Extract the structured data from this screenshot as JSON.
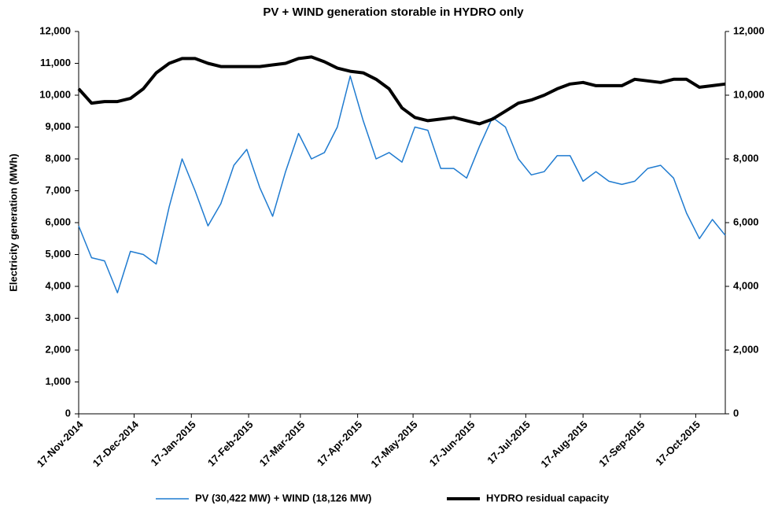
{
  "chart_data": {
    "type": "line",
    "title": "PV + WIND generation storable in HYDRO only",
    "y_label": "Electricity generation (MWh)",
    "x": [
      "2014-11-17",
      "2014-11-24",
      "2014-12-01",
      "2014-12-08",
      "2014-12-15",
      "2014-12-22",
      "2014-12-29",
      "2015-01-05",
      "2015-01-12",
      "2015-01-19",
      "2015-01-26",
      "2015-02-02",
      "2015-02-09",
      "2015-02-16",
      "2015-02-23",
      "2015-03-02",
      "2015-03-09",
      "2015-03-16",
      "2015-03-23",
      "2015-03-30",
      "2015-04-06",
      "2015-04-13",
      "2015-04-20",
      "2015-04-27",
      "2015-05-04",
      "2015-05-11",
      "2015-05-18",
      "2015-05-25",
      "2015-06-01",
      "2015-06-08",
      "2015-06-15",
      "2015-06-22",
      "2015-06-29",
      "2015-07-06",
      "2015-07-13",
      "2015-07-20",
      "2015-07-27",
      "2015-08-03",
      "2015-08-10",
      "2015-08-17",
      "2015-08-24",
      "2015-08-31",
      "2015-09-07",
      "2015-09-14",
      "2015-09-21",
      "2015-09-28",
      "2015-10-05",
      "2015-10-12",
      "2015-10-19",
      "2015-10-26",
      "2015-11-02"
    ],
    "series": [
      {
        "name": "PV (30,422 MW) + WIND (18,126 MW)",
        "color": "#1f7bd0",
        "values": [
          5900,
          4900,
          4800,
          3800,
          5100,
          5000,
          4700,
          6500,
          8000,
          7000,
          5900,
          6600,
          7800,
          8300,
          7100,
          6200,
          7600,
          8800,
          8000,
          8200,
          9000,
          10600,
          9200,
          8000,
          8200,
          7900,
          9000,
          8900,
          7700,
          7700,
          7400,
          8400,
          9300,
          9000,
          8000,
          7500,
          7600,
          8100,
          8100,
          7300,
          7600,
          7300,
          7200,
          7300,
          7700,
          7800,
          7400,
          6300,
          5500,
          6100,
          5600
        ]
      },
      {
        "name": "HYDRO residual capacity",
        "color": "#000000",
        "axis": "y2",
        "values": [
          10200,
          9750,
          9800,
          9800,
          9900,
          10200,
          10700,
          11000,
          11150,
          11150,
          11000,
          10900,
          10900,
          10900,
          10900,
          10950,
          11000,
          11150,
          11200,
          11050,
          10850,
          10750,
          10700,
          10500,
          10200,
          9600,
          9300,
          9200,
          9250,
          9300,
          9200,
          9100,
          9250,
          9500,
          9750,
          9850,
          10000,
          10200,
          10350,
          10400,
          10300,
          10300,
          10300,
          10500,
          10450,
          10400,
          10500,
          10500,
          10250,
          10300,
          10350
        ]
      }
    ],
    "xlim": [
      "2014-11-17",
      "2015-11-02"
    ],
    "xticks": [
      {
        "value": "2014-11-17",
        "label": "17-Nov-2014"
      },
      {
        "value": "2014-12-17",
        "label": "17-Dec-2014"
      },
      {
        "value": "2015-01-17",
        "label": "17-Jan-2015"
      },
      {
        "value": "2015-02-17",
        "label": "17-Feb-2015"
      },
      {
        "value": "2015-03-17",
        "label": "17-Mar-2015"
      },
      {
        "value": "2015-04-17",
        "label": "17-Apr-2015"
      },
      {
        "value": "2015-05-17",
        "label": "17-May-2015"
      },
      {
        "value": "2015-06-17",
        "label": "17-Jun-2015"
      },
      {
        "value": "2015-07-17",
        "label": "17-Jul-2015"
      },
      {
        "value": "2015-08-17",
        "label": "17-Aug-2015"
      },
      {
        "value": "2015-09-17",
        "label": "17-Sep-2015"
      },
      {
        "value": "2015-10-17",
        "label": "17-Oct-2015"
      }
    ],
    "ylim": [
      0,
      12000
    ],
    "yticks": [
      0,
      {
        "value": 1000,
        "label": "1,000"
      },
      {
        "value": 2000,
        "label": "2,000"
      },
      {
        "value": 3000,
        "label": "3,000"
      },
      {
        "value": 4000,
        "label": "4,000"
      },
      {
        "value": 5000,
        "label": "5,000"
      },
      {
        "value": 6000,
        "label": "6,000"
      },
      {
        "value": 7000,
        "label": "7,000"
      },
      {
        "value": 8000,
        "label": "8,000"
      },
      {
        "value": 9000,
        "label": "9,000"
      },
      {
        "value": 10000,
        "label": "10,000"
      },
      {
        "value": 11000,
        "label": "11,000"
      },
      {
        "value": 12000,
        "label": "12,000"
      }
    ],
    "y2lim": [
      0,
      12000
    ],
    "y2ticks": [
      0,
      {
        "value": 2000,
        "label": "2,000"
      },
      {
        "value": 4000,
        "label": "4,000"
      },
      {
        "value": 6000,
        "label": "6,000"
      },
      {
        "value": 8000,
        "label": "8,000"
      },
      {
        "value": 10000,
        "label": "10,000"
      },
      {
        "value": 12000,
        "label": "12,000"
      }
    ],
    "grid": false,
    "legend": "bottom"
  }
}
